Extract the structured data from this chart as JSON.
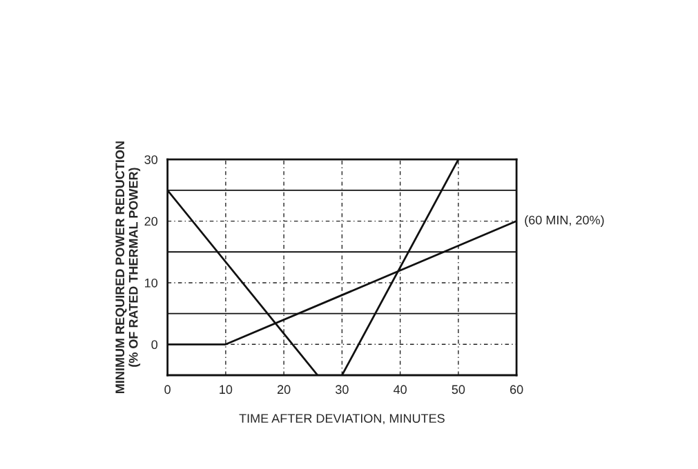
{
  "chart_data": {
    "type": "line",
    "xlabel": "TIME AFTER DEVIATION, MINUTES",
    "ylabel": "MINIMUM REQUIRED POWER REDUCTION\n(% OF RATED THERMAL POWER)",
    "series": [
      {
        "color": "#111111",
        "x": [
          0,
          10,
          60
        ],
        "values": [
          0,
          0,
          20
        ]
      },
      {
        "color": "#111111",
        "x": [
          0,
          25.8
        ],
        "values": [
          25,
          -5
        ]
      },
      {
        "color": "#111111",
        "x": [
          30,
          50
        ],
        "values": [
          -5,
          30
        ]
      }
    ],
    "xlim": [
      0,
      60
    ],
    "ylim": [
      -5,
      30
    ],
    "xticks": [
      0,
      10,
      20,
      30,
      40,
      50,
      60
    ],
    "yticks": [
      0,
      10,
      20,
      30
    ],
    "grid": true,
    "line_style": "solid",
    "marker": "none",
    "ref_lines": [
      {
        "axis": "y",
        "value": 5
      },
      {
        "axis": "y",
        "value": 15
      },
      {
        "axis": "y",
        "value": 25
      }
    ],
    "annotations": [
      {
        "text": "(60 MIN, 20%)",
        "x": 60,
        "y": 20
      }
    ]
  }
}
